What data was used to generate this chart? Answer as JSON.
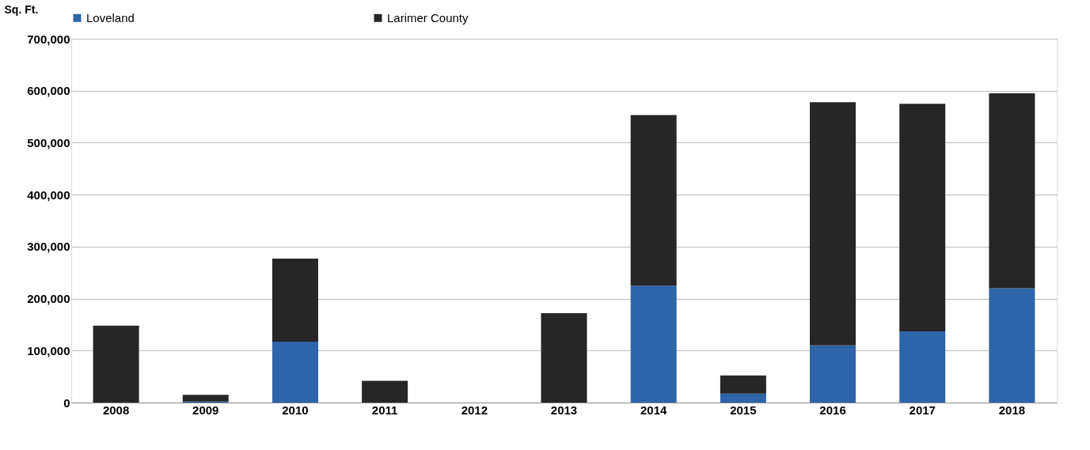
{
  "chart_data": {
    "type": "bar",
    "stacked": true,
    "ylabel": "Sq. Ft.",
    "categories": [
      "2008",
      "2009",
      "2010",
      "2011",
      "2012",
      "2013",
      "2014",
      "2015",
      "2016",
      "2017",
      "2018"
    ],
    "series": [
      {
        "name": "Loveland",
        "color": "#2e64a8",
        "values": [
          0,
          2000,
          117000,
          0,
          0,
          0,
          225000,
          17000,
          110000,
          137000,
          220000
        ]
      },
      {
        "name": "Larimer County",
        "color": "#262626",
        "values": [
          148000,
          13000,
          160000,
          42000,
          0,
          172000,
          328000,
          35000,
          468000,
          438000,
          375000
        ]
      }
    ],
    "ylim": [
      0,
      700000
    ],
    "yticks": [
      {
        "value": 0,
        "label": "0"
      },
      {
        "value": 100000,
        "label": "100,000"
      },
      {
        "value": 200000,
        "label": "200,000"
      },
      {
        "value": 300000,
        "label": "300,000"
      },
      {
        "value": 400000,
        "label": "400,000"
      },
      {
        "value": 500000,
        "label": "500,000"
      },
      {
        "value": 600000,
        "label": "600,000"
      },
      {
        "value": 700000,
        "label": "700,000"
      }
    ],
    "grid": "y",
    "legend": "top"
  }
}
